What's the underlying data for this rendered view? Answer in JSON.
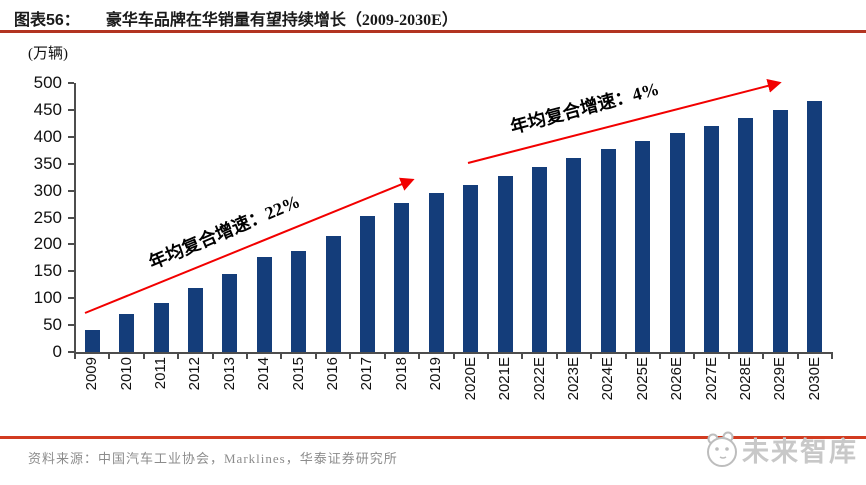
{
  "header": {
    "label": "图表56：",
    "title": "豪华车品牌在华销量有望持续增长（2009-2030E）"
  },
  "chart_data": {
    "type": "bar",
    "title": "豪华车品牌在华销量有望持续增长（2009-2030E）",
    "unit": "(万辆)",
    "categories": [
      "2009",
      "2010",
      "2011",
      "2012",
      "2013",
      "2014",
      "2015",
      "2016",
      "2017",
      "2018",
      "2019",
      "2020E",
      "2021E",
      "2022E",
      "2023E",
      "2024E",
      "2025E",
      "2026E",
      "2027E",
      "2028E",
      "2029E",
      "2030E"
    ],
    "values": [
      40,
      70,
      91,
      119,
      145,
      177,
      188,
      216,
      253,
      277,
      296,
      310,
      327,
      344,
      361,
      377,
      392,
      407,
      421,
      435,
      450,
      466
    ],
    "xlabel": "",
    "ylabel": "(万辆)",
    "ylim": [
      0,
      500
    ],
    "ytick_step": 50,
    "grid": false,
    "legend": "none",
    "bar_color": "#143d7a",
    "annotations": [
      {
        "text": "年均复合增速：22%",
        "arrow_color": "#f20000"
      },
      {
        "text": "年均复合增速：4%",
        "arrow_color": "#f20000"
      }
    ]
  },
  "footer": {
    "source": "资料来源：中国汽车工业协会，Marklines，华泰证券研究所",
    "brand": "未来智库"
  },
  "colors": {
    "bar": "#143d7a",
    "arrow": "#f20000",
    "rule_top": "#b23421",
    "rule_bottom": "#d23b20",
    "source_text": "#8c8c8c",
    "logo": "#c8c8c8"
  }
}
